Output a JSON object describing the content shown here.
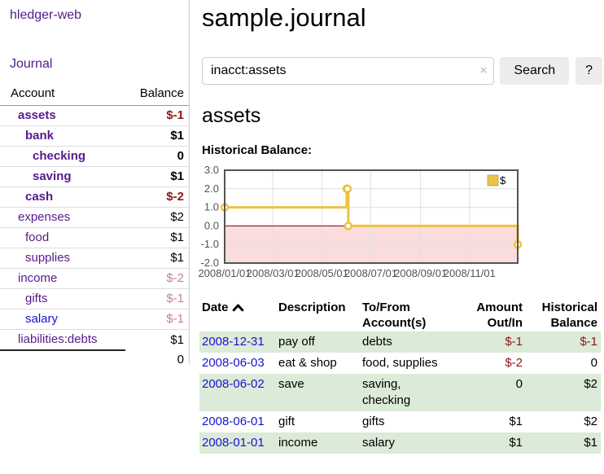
{
  "sidebar": {
    "brand": "hledger-web",
    "nav": {
      "journal": "Journal"
    },
    "accounts_table": {
      "headers": {
        "account": "Account",
        "balance": "Balance"
      },
      "rows": [
        {
          "name": "assets",
          "indent": 1,
          "balance": "$-1",
          "bold": true,
          "balance_class": "neg-strong",
          "link": "purple"
        },
        {
          "name": "bank",
          "indent": 2,
          "balance": "$1",
          "bold": true,
          "balance_class": "",
          "link": "purple"
        },
        {
          "name": "checking",
          "indent": 3,
          "balance": "0",
          "bold": true,
          "balance_class": "",
          "link": "purple"
        },
        {
          "name": "saving",
          "indent": 3,
          "balance": "$1",
          "bold": true,
          "balance_class": "",
          "link": "purple"
        },
        {
          "name": "cash",
          "indent": 2,
          "balance": "$-2",
          "bold": true,
          "balance_class": "neg-strong",
          "link": "purple"
        },
        {
          "name": "expenses",
          "indent": 1,
          "balance": "$2",
          "bold": false,
          "balance_class": "",
          "link": "purple"
        },
        {
          "name": "food",
          "indent": 2,
          "balance": "$1",
          "bold": false,
          "balance_class": "",
          "link": "purple"
        },
        {
          "name": "supplies",
          "indent": 2,
          "balance": "$1",
          "bold": false,
          "balance_class": "",
          "link": "purple"
        },
        {
          "name": "income",
          "indent": 1,
          "balance": "$-2",
          "bold": false,
          "balance_class": "neg-soft",
          "link": "purple"
        },
        {
          "name": "gifts",
          "indent": 2,
          "balance": "$-1",
          "bold": false,
          "balance_class": "neg-soft",
          "link": "purple"
        },
        {
          "name": "salary",
          "indent": 2,
          "balance": "$-1",
          "bold": false,
          "balance_class": "neg-soft",
          "link": "blue"
        },
        {
          "name": "liabilities:debts",
          "indent": 1,
          "balance": "$1",
          "bold": false,
          "balance_class": "",
          "link": "purple"
        }
      ],
      "total": "0"
    }
  },
  "header": {
    "title": "sample.journal"
  },
  "search": {
    "query": "inacct:assets",
    "clear_icon": "×",
    "button_label": "Search",
    "help_label": "?"
  },
  "account_page": {
    "title": "assets",
    "chart_label": "Historical Balance:"
  },
  "chart_data": {
    "type": "line",
    "step": true,
    "title": "Historical Balance",
    "series": [
      {
        "name": "$",
        "color": "#edc240",
        "points": [
          [
            "2008-01-01",
            1
          ],
          [
            "2008-06-01",
            2
          ],
          [
            "2008-06-02",
            2
          ],
          [
            "2008-06-03",
            0
          ],
          [
            "2008-12-31",
            -1
          ]
        ]
      }
    ],
    "x_range": [
      "2008-01-01",
      "2008-12-31"
    ],
    "ylim": [
      -2,
      3
    ],
    "y_ticks": [
      {
        "label": "3.0",
        "v": 3
      },
      {
        "label": "2.0",
        "v": 2
      },
      {
        "label": "1.0",
        "v": 1
      },
      {
        "label": "0.0",
        "v": 0
      },
      {
        "label": "-1.0",
        "v": -1
      },
      {
        "label": "-2.0",
        "v": -2
      }
    ],
    "x_ticks": [
      {
        "label": "2008/01/01",
        "date": "2008-01-01"
      },
      {
        "label": "2008/03/01",
        "date": "2008-03-01"
      },
      {
        "label": "2008/05/01",
        "date": "2008-05-01"
      },
      {
        "label": "2008/07/01",
        "date": "2008-07-01"
      },
      {
        "label": "2008/09/01",
        "date": "2008-09-01"
      },
      {
        "label": "2008/11/01",
        "date": "2008-11-01"
      }
    ],
    "legend": {
      "label": "$",
      "position": "top-right",
      "swatch_color": "#edc240"
    },
    "grid": true,
    "colors": {
      "line": "#edc240",
      "marker_fill": "#ffffff",
      "negative_fill": "#fadcdc",
      "zero_line": "#800000",
      "border": "#545454",
      "gridline": "#e0e0e0",
      "axis_text": "#545454"
    }
  },
  "register_table": {
    "headers": {
      "date": "Date",
      "description": "Description",
      "tofrom_line1": "To/From",
      "tofrom_line2": "Account(s)",
      "amount_line1": "Amount",
      "amount_line2": "Out/In",
      "balance_line1": "Historical",
      "balance_line2": "Balance"
    },
    "sort": {
      "column": "date",
      "direction": "ascending"
    },
    "rows": [
      {
        "date": "2008-12-31",
        "description": "pay off",
        "accounts": "debts",
        "amount": "$-1",
        "amount_class": "neg-strong",
        "balance": "$-1",
        "balance_class": "neg-strong",
        "shaded": true
      },
      {
        "date": "2008-06-03",
        "description": "eat & shop",
        "accounts": "food, supplies",
        "amount": "$-2",
        "amount_class": "neg-strong",
        "balance": "0",
        "balance_class": "",
        "shaded": false
      },
      {
        "date": "2008-06-02",
        "description": "save",
        "accounts": "saving, checking",
        "amount": "0",
        "amount_class": "",
        "balance": "$2",
        "balance_class": "",
        "shaded": true
      },
      {
        "date": "2008-06-01",
        "description": "gift",
        "accounts": "gifts",
        "amount": "$1",
        "amount_class": "",
        "balance": "$2",
        "balance_class": "",
        "shaded": false
      },
      {
        "date": "2008-01-01",
        "description": "income",
        "accounts": "salary",
        "amount": "$1",
        "amount_class": "",
        "balance": "$1",
        "balance_class": "",
        "shaded": true
      }
    ]
  }
}
